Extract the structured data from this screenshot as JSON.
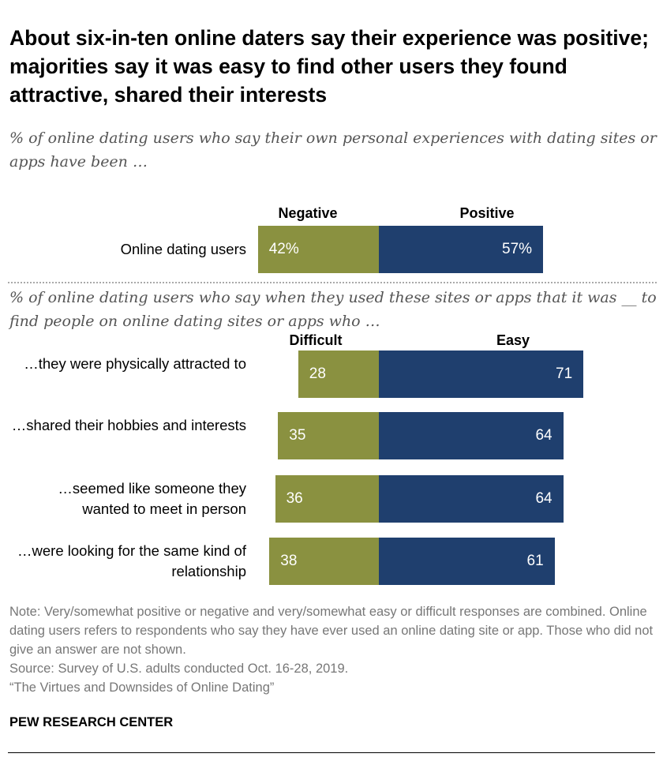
{
  "title": "About six-in-ten online daters say their experience was positive; majorities say it was easy to find other users they found attractive, shared their interests",
  "subtitle1": "% of online dating users who say their own personal experiences with dating sites or apps have been …",
  "subtitle2": "% of online dating users who say when they used these sites or apps that it was __ to find people on online dating sites or apps who …",
  "colors": {
    "left": "#8a9140",
    "right": "#1f3f6e"
  },
  "chart_data": [
    {
      "type": "bar",
      "orientation": "horizontal-diverging",
      "headers": [
        "Negative",
        "Positive"
      ],
      "categories": [
        "Online dating users"
      ],
      "series": [
        {
          "name": "Negative",
          "values": [
            42
          ],
          "labels": [
            "42%"
          ]
        },
        {
          "name": "Positive",
          "values": [
            57
          ],
          "labels": [
            "57%"
          ]
        }
      ]
    },
    {
      "type": "bar",
      "orientation": "horizontal-diverging",
      "headers": [
        "Difficult",
        "Easy"
      ],
      "categories": [
        "…they were physically attracted to",
        "…shared their hobbies and interests",
        "…seemed like someone they wanted to meet in person",
        "…were looking for the same kind of relationship"
      ],
      "series": [
        {
          "name": "Difficult",
          "values": [
            28,
            35,
            36,
            38
          ],
          "labels": [
            "28",
            "35",
            "36",
            "38"
          ]
        },
        {
          "name": "Easy",
          "values": [
            71,
            64,
            64,
            61
          ],
          "labels": [
            "71",
            "64",
            "64",
            "61"
          ]
        }
      ]
    }
  ],
  "note": "Note: Very/somewhat positive or negative and very/somewhat easy or difficult responses are combined. Online dating users refers to respondents who say they have ever used an online dating site or app. Those who did not give an answer are not shown.",
  "source": "Source: Survey of U.S. adults conducted Oct. 16-28, 2019.",
  "report": "“The Virtues and Downsides of Online Dating”",
  "brand": "PEW RESEARCH CENTER"
}
